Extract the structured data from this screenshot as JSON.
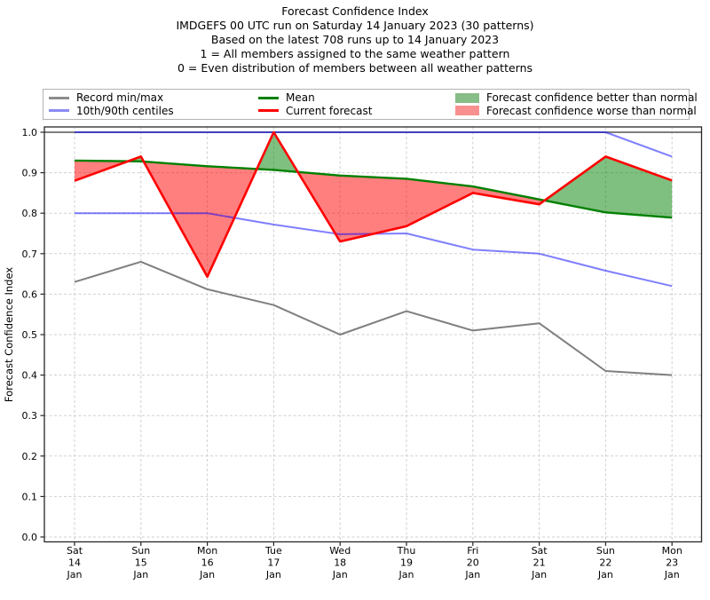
{
  "header": {
    "lines": [
      "Forecast Confidence Index",
      "IMDGEFS 00 UTC run on Saturday 14 January 2023 (30 patterns)",
      "Based on the latest 708 runs up to 14 January 2023",
      "1 = All members assigned to the same weather pattern",
      "0 = Even distribution of members between all weather patterns"
    ]
  },
  "legend": {
    "items": [
      {
        "label": "Record min/max",
        "swatch": "line",
        "color": "#8c8c8c"
      },
      {
        "label": "10th/90th centiles",
        "swatch": "line",
        "color": "#8a8af5"
      },
      {
        "label": "Mean",
        "swatch": "line",
        "color": "#008000"
      },
      {
        "label": "Current forecast",
        "swatch": "line",
        "color": "#ff0000"
      },
      {
        "label": "Forecast confidence better than normal",
        "swatch": "patch",
        "color": "#87bd87"
      },
      {
        "label": "Forecast confidence worse than normal",
        "swatch": "patch",
        "color": "#f89090"
      }
    ]
  },
  "chart_data": {
    "type": "line",
    "title": "Forecast Confidence Index",
    "ylabel": "Forecast Confidence Index",
    "xlabel": "",
    "ylim": [
      0.0,
      1.0
    ],
    "yticks": [
      0.0,
      0.1,
      0.2,
      0.3,
      0.4,
      0.5,
      0.6,
      0.7,
      0.8,
      0.9,
      1.0
    ],
    "grid": true,
    "legend_position": "top",
    "categories": [
      [
        "Sat",
        "14",
        "Jan"
      ],
      [
        "Sun",
        "15",
        "Jan"
      ],
      [
        "Mon",
        "16",
        "Jan"
      ],
      [
        "Tue",
        "17",
        "Jan"
      ],
      [
        "Wed",
        "18",
        "Jan"
      ],
      [
        "Thu",
        "19",
        "Jan"
      ],
      [
        "Fri",
        "20",
        "Jan"
      ],
      [
        "Sat",
        "21",
        "Jan"
      ],
      [
        "Sun",
        "22",
        "Jan"
      ],
      [
        "Mon",
        "23",
        "Jan"
      ]
    ],
    "series": [
      {
        "key": "record_max",
        "name": "Record max",
        "color": "#7f7f7f",
        "opacity": 1,
        "width": 2,
        "full_width": true,
        "values": [
          1.0,
          1.0,
          1.0,
          1.0,
          1.0,
          1.0,
          1.0,
          1.0,
          1.0,
          1.0
        ]
      },
      {
        "key": "record_min",
        "name": "Record min",
        "color": "#7f7f7f",
        "opacity": 1,
        "width": 2,
        "values": [
          0.63,
          0.68,
          0.612,
          0.573,
          0.5,
          0.558,
          0.51,
          0.528,
          0.41,
          0.4
        ]
      },
      {
        "key": "centile_90",
        "name": "90th centile",
        "color": "#0000ff",
        "opacity": 0.5,
        "width": 2,
        "values": [
          1.0,
          1.0,
          1.0,
          1.0,
          1.0,
          1.0,
          1.0,
          1.0,
          1.0,
          0.94
        ]
      },
      {
        "key": "centile_10",
        "name": "10th centile",
        "color": "#0000ff",
        "opacity": 0.5,
        "width": 2,
        "values": [
          0.8,
          0.8,
          0.8,
          0.772,
          0.748,
          0.75,
          0.71,
          0.7,
          0.658,
          0.62
        ]
      },
      {
        "key": "mean",
        "name": "Mean",
        "color": "#008000",
        "opacity": 1,
        "width": 2.4,
        "values": [
          0.93,
          0.928,
          0.916,
          0.907,
          0.893,
          0.885,
          0.866,
          0.834,
          0.802,
          0.789
        ]
      },
      {
        "key": "current",
        "name": "Current forecast",
        "color": "#ff0000",
        "opacity": 1,
        "width": 2.6,
        "values": [
          0.88,
          0.94,
          0.643,
          1.0,
          0.73,
          0.768,
          0.85,
          0.822,
          0.94,
          0.881
        ]
      }
    ],
    "band": {
      "upper": "current",
      "lower": "mean",
      "above_label": "Forecast confidence better than normal",
      "below_label": "Forecast confidence worse than normal",
      "above_color": "rgba(0,128,0,0.5)",
      "below_color": "rgba(255,0,0,0.5)"
    }
  }
}
